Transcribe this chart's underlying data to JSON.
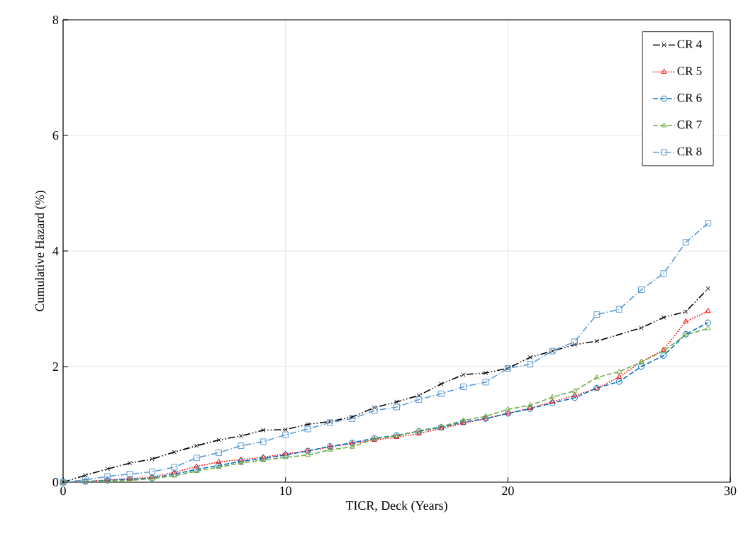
{
  "chart_data": {
    "type": "line",
    "xlabel": "TICR, Deck (Years)",
    "ylabel": "Cumulative Hazard (%)",
    "x": [
      0,
      1,
      2,
      3,
      4,
      5,
      6,
      7,
      8,
      9,
      10,
      11,
      12,
      13,
      14,
      15,
      16,
      17,
      18,
      19,
      20,
      21,
      22,
      23,
      24,
      25,
      26,
      27,
      28,
      29
    ],
    "xlim": [
      0,
      30
    ],
    "xticks": [
      0,
      10,
      20,
      30
    ],
    "ylim": [
      0,
      8
    ],
    "yticks": [
      0,
      2,
      4,
      6,
      8
    ],
    "grid": true,
    "legend": "top right",
    "series": [
      {
        "name": "CR 4",
        "color": "#000000",
        "marker": "cross",
        "line_style": "dashdotdot",
        "x": [
          0,
          1,
          2,
          3,
          4,
          5,
          6,
          7,
          8,
          9,
          10,
          11,
          12,
          13,
          14,
          15,
          16,
          17,
          18,
          19,
          20,
          21,
          22,
          23,
          24,
          26,
          27,
          28,
          29
        ],
        "values": [
          0,
          0.12,
          0.23,
          0.33,
          0.4,
          0.52,
          0.63,
          0.73,
          0.8,
          0.9,
          0.91,
          1.0,
          1.05,
          1.13,
          1.29,
          1.39,
          1.5,
          1.7,
          1.86,
          1.89,
          1.97,
          2.16,
          2.27,
          2.38,
          2.44,
          2.67,
          2.85,
          2.95,
          3.35
        ]
      },
      {
        "name": "CR 5",
        "color": "#ff0000",
        "marker": "triangle",
        "line_style": "dotted",
        "values": [
          0,
          0.01,
          0.04,
          0.06,
          0.09,
          0.17,
          0.27,
          0.35,
          0.39,
          0.43,
          0.49,
          0.54,
          0.61,
          0.67,
          0.73,
          0.78,
          0.84,
          0.93,
          1.02,
          1.1,
          1.19,
          1.28,
          1.39,
          1.5,
          1.62,
          1.82,
          2.08,
          2.29,
          2.78,
          2.96
        ]
      },
      {
        "name": "CR 6",
        "color": "#0070c0",
        "marker": "circle",
        "line_style": "dashed",
        "values": [
          0,
          0.01,
          0.03,
          0.05,
          0.07,
          0.14,
          0.22,
          0.29,
          0.36,
          0.41,
          0.47,
          0.54,
          0.62,
          0.68,
          0.76,
          0.81,
          0.88,
          0.95,
          1.04,
          1.1,
          1.19,
          1.27,
          1.37,
          1.46,
          1.63,
          1.74,
          2.0,
          2.19,
          2.56,
          2.76
        ]
      },
      {
        "name": "CR 7",
        "color": "#70ad47",
        "marker": "triangle",
        "line_style": "dashed",
        "values": [
          0,
          0.0,
          0.02,
          0.03,
          0.06,
          0.11,
          0.19,
          0.26,
          0.33,
          0.38,
          0.43,
          0.47,
          0.56,
          0.61,
          0.75,
          0.8,
          0.89,
          0.96,
          1.07,
          1.14,
          1.26,
          1.33,
          1.47,
          1.58,
          1.81,
          1.91,
          2.08,
          2.27,
          2.55,
          2.66
        ]
      },
      {
        "name": "CR 8",
        "color": "#5b9bd5",
        "marker": "square",
        "line_style": "dashdot",
        "values": [
          0,
          0.04,
          0.1,
          0.14,
          0.18,
          0.26,
          0.42,
          0.51,
          0.63,
          0.7,
          0.82,
          0.92,
          1.03,
          1.1,
          1.24,
          1.3,
          1.43,
          1.53,
          1.65,
          1.73,
          1.97,
          2.04,
          2.27,
          2.43,
          2.9,
          2.99,
          3.33,
          3.61,
          4.15,
          4.48
        ]
      }
    ]
  }
}
